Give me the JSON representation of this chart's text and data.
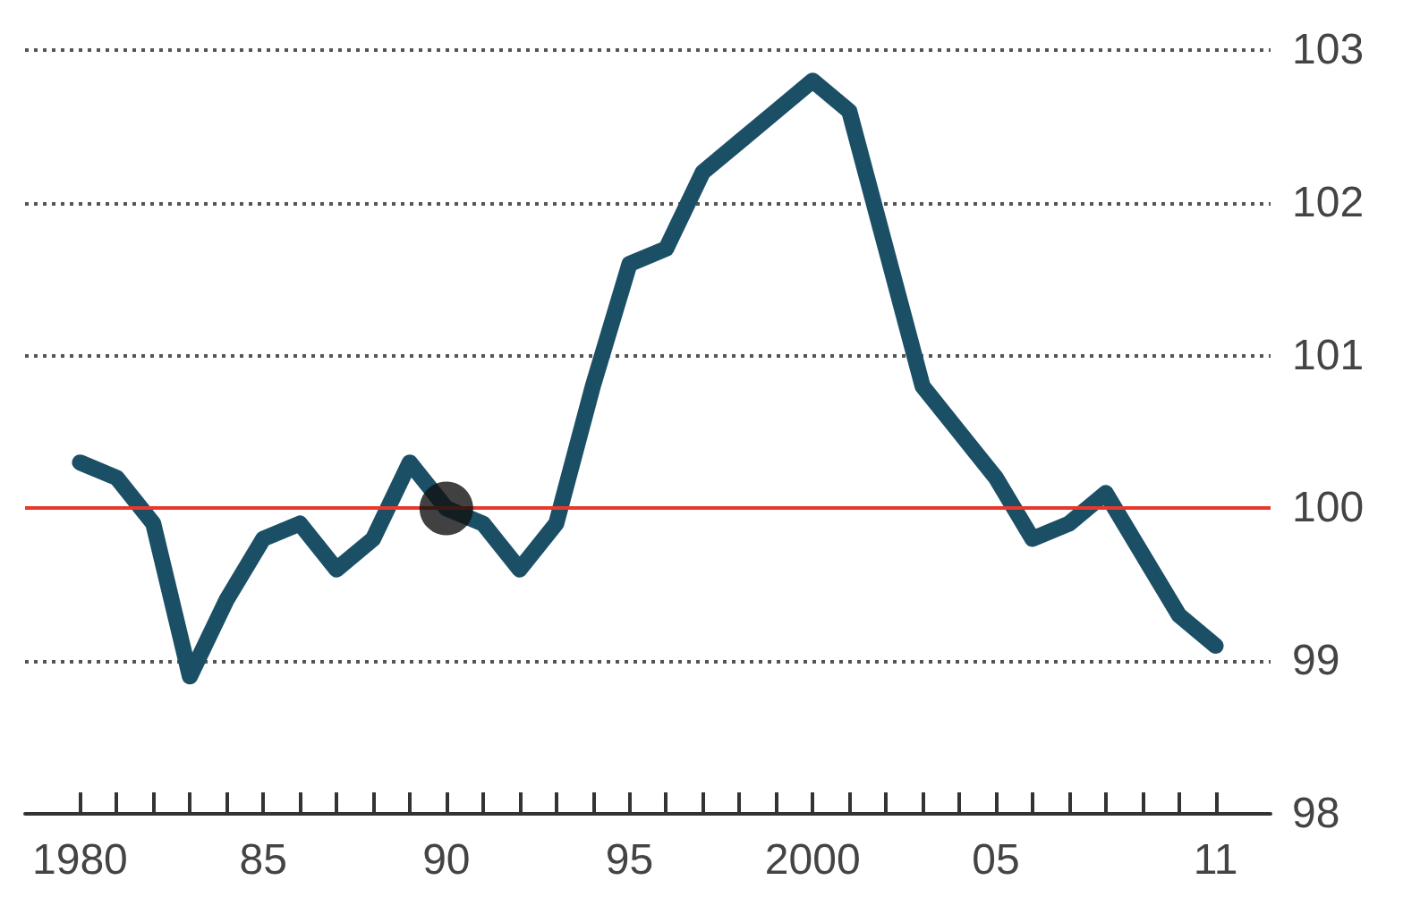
{
  "chart_data": {
    "type": "line",
    "x": [
      1980,
      1981,
      1982,
      1983,
      1984,
      1985,
      1986,
      1987,
      1988,
      1989,
      1990,
      1991,
      1992,
      1993,
      1994,
      1995,
      1996,
      1997,
      1998,
      1999,
      2000,
      2001,
      2002,
      2003,
      2004,
      2005,
      2006,
      2007,
      2008,
      2009,
      2010,
      2011
    ],
    "series": [
      {
        "color": "#1b4f66",
        "values": [
          100.3,
          100.2,
          99.9,
          98.9,
          99.4,
          99.8,
          99.9,
          99.6,
          99.8,
          100.3,
          100.0,
          99.9,
          99.6,
          99.9,
          100.8,
          101.6,
          101.7,
          102.2,
          102.4,
          102.6,
          102.8,
          102.6,
          101.7,
          100.8,
          100.5,
          100.2,
          99.8,
          99.9,
          100.1,
          99.7,
          99.3,
          99.1
        ]
      },
      {
        "type": "scatter",
        "color": "#111111",
        "x": [
          1990
        ],
        "values": [
          100
        ],
        "marker": "circle"
      }
    ],
    "xlim": [
      1978.5,
      2012.5
    ],
    "xticks": [
      {
        "value": 1980,
        "label": "1980"
      },
      {
        "value": 1981,
        "label": null
      },
      {
        "value": 1982,
        "label": null
      },
      {
        "value": 1983,
        "label": null
      },
      {
        "value": 1984,
        "label": null
      },
      {
        "value": 1985,
        "label": "85"
      },
      {
        "value": 1986,
        "label": null
      },
      {
        "value": 1987,
        "label": null
      },
      {
        "value": 1988,
        "label": null
      },
      {
        "value": 1989,
        "label": null
      },
      {
        "value": 1990,
        "label": "90"
      },
      {
        "value": 1991,
        "label": null
      },
      {
        "value": 1992,
        "label": null
      },
      {
        "value": 1993,
        "label": null
      },
      {
        "value": 1994,
        "label": null
      },
      {
        "value": 1995,
        "label": "95"
      },
      {
        "value": 1996,
        "label": null
      },
      {
        "value": 1997,
        "label": null
      },
      {
        "value": 1998,
        "label": null
      },
      {
        "value": 1999,
        "label": null
      },
      {
        "value": 2000,
        "label": "2000"
      },
      {
        "value": 2001,
        "label": null
      },
      {
        "value": 2002,
        "label": null
      },
      {
        "value": 2003,
        "label": null
      },
      {
        "value": 2004,
        "label": null
      },
      {
        "value": 2005,
        "label": "05"
      },
      {
        "value": 2006,
        "label": null
      },
      {
        "value": 2007,
        "label": null
      },
      {
        "value": 2008,
        "label": null
      },
      {
        "value": 2009,
        "label": null
      },
      {
        "value": 2010,
        "label": null
      },
      {
        "value": 2011,
        "label": "11"
      }
    ],
    "ylim": [
      98,
      103
    ],
    "yticks": [
      98,
      99,
      100,
      101,
      102,
      103
    ],
    "grid": "y",
    "line_style": "solid",
    "ref_lines": [
      {
        "axis": "y",
        "value": 100,
        "color": "#e8392c"
      }
    ]
  }
}
